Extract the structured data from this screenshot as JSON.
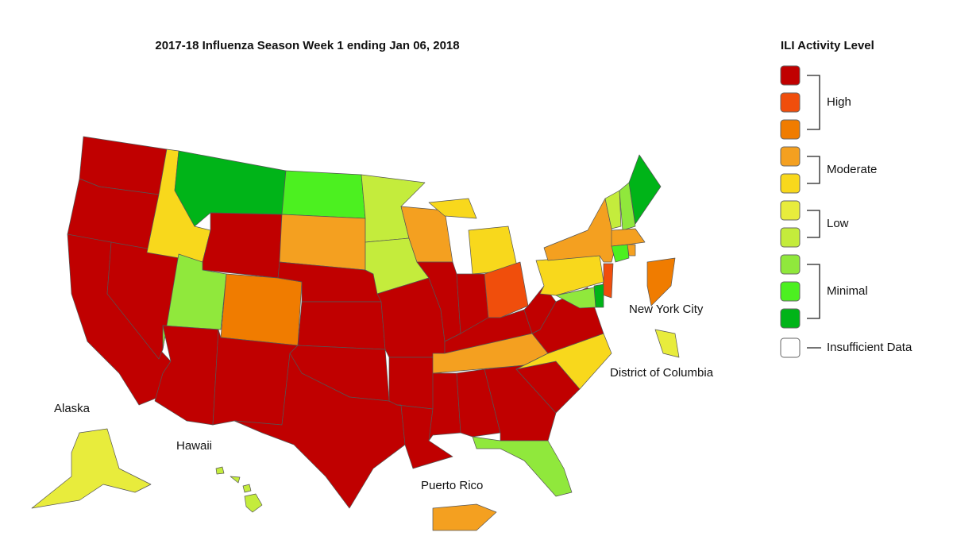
{
  "title": "2017-18 Influenza Season Week 1 ending Jan 06, 2018",
  "legend": {
    "title": "ILI Activity Level",
    "swatches": [
      {
        "color": "#c00000"
      },
      {
        "color": "#f04e0c"
      },
      {
        "color": "#f07c00"
      },
      {
        "color": "#f4a020"
      },
      {
        "color": "#f8d81c"
      },
      {
        "color": "#e8ec3c"
      },
      {
        "color": "#c4ec3c"
      },
      {
        "color": "#90e83c"
      },
      {
        "color": "#4cf020"
      },
      {
        "color": "#00b418"
      }
    ],
    "groups": [
      {
        "label": "High"
      },
      {
        "label": "Moderate"
      },
      {
        "label": "Low"
      },
      {
        "label": "Minimal"
      }
    ],
    "insufficient": {
      "label": "Insufficient Data",
      "color": "#ffffff"
    }
  },
  "labels": [
    {
      "text": "Alaska"
    },
    {
      "text": "Hawaii"
    },
    {
      "text": "Puerto Rico"
    },
    {
      "text": "New York City"
    },
    {
      "text": "District of Columbia"
    }
  ],
  "regions": [
    "#c00000",
    "#c00000",
    "#c00000",
    "#c00000",
    "#f8d81c",
    "#00b418",
    "#c00000",
    "#90e83c",
    "#f07c00",
    "#c00000",
    "#c00000",
    "#4cf020",
    "#f4a020",
    "#c00000",
    "#c00000",
    "#c00000",
    "#c00000",
    "#c4ec3c",
    "#c4ec3c",
    "#c00000",
    "#c00000",
    "#c00000",
    "#f4a020",
    "#c00000",
    "#f8d81c",
    "#c00000",
    "#f04e0c",
    "#c00000",
    "#f4a020",
    "#c00000",
    "#c00000",
    "#c00000",
    "#90e83c",
    "#c00000",
    "#f8d81c",
    "#c00000",
    "#c00000",
    "#f8d81c",
    "#f4a020",
    "#f04e0c",
    "#00b418",
    "#90e83c",
    "#c4ec3c",
    "#90e83c",
    "#00b418",
    "#f4a020",
    "#4cf020",
    "#f4a020",
    "#e8ec3c",
    "#c4ec3c",
    "#f4a020",
    "#f07c00",
    "#e8ec3c"
  ]
}
